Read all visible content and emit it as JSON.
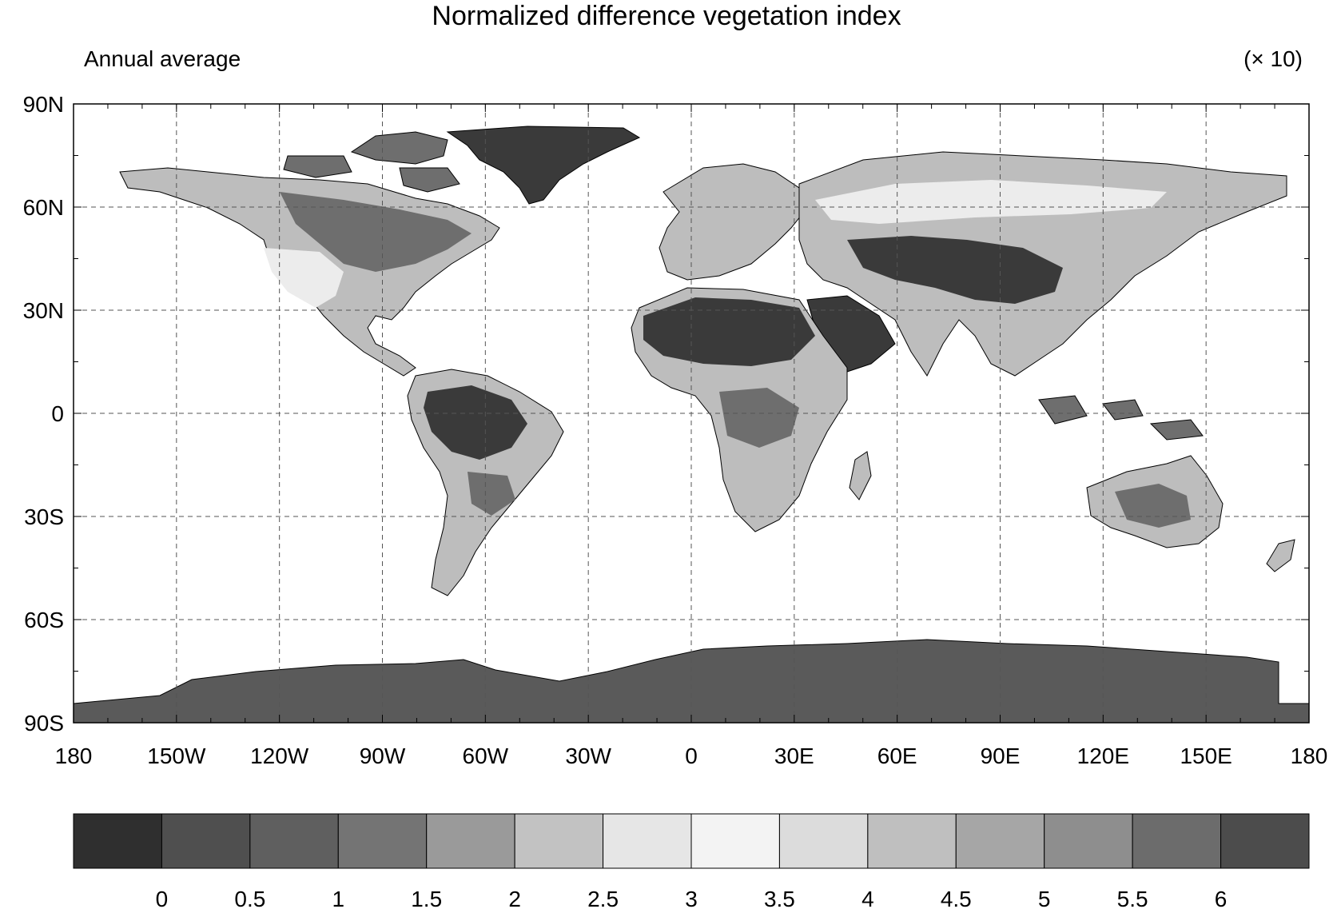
{
  "header": {
    "title": "Normalized difference vegetation index",
    "subtitle": "Annual average",
    "scale_note": "(× 10)"
  },
  "map": {
    "lat_labels": [
      "90N",
      "60N",
      "30N",
      "0",
      "30S",
      "60S",
      "90S"
    ],
    "lon_labels": [
      "180",
      "150W",
      "120W",
      "90W",
      "60W",
      "30W",
      "0",
      "30E",
      "60E",
      "90E",
      "120E",
      "150E",
      "180"
    ],
    "grid": true,
    "land_colors": {
      "desert_dark": "#3a3a3a",
      "medium": "#6e6e6e",
      "light": "#bdbdbd",
      "lightest": "#ececec"
    }
  },
  "colorbar": {
    "colors": [
      "#2f2f2f",
      "#4f4f4f",
      "#5f5f5f",
      "#747474",
      "#9a9a9a",
      "#c2c2c2",
      "#e6e6e6",
      "#f3f3f3",
      "#dcdcdc",
      "#bfbfbf",
      "#a6a6a6",
      "#8e8e8e",
      "#6c6c6c",
      "#4c4c4c"
    ],
    "labels": [
      "0",
      "0.5",
      "1",
      "1.5",
      "2",
      "2.5",
      "3",
      "3.5",
      "4",
      "4.5",
      "5",
      "5.5",
      "6"
    ]
  }
}
